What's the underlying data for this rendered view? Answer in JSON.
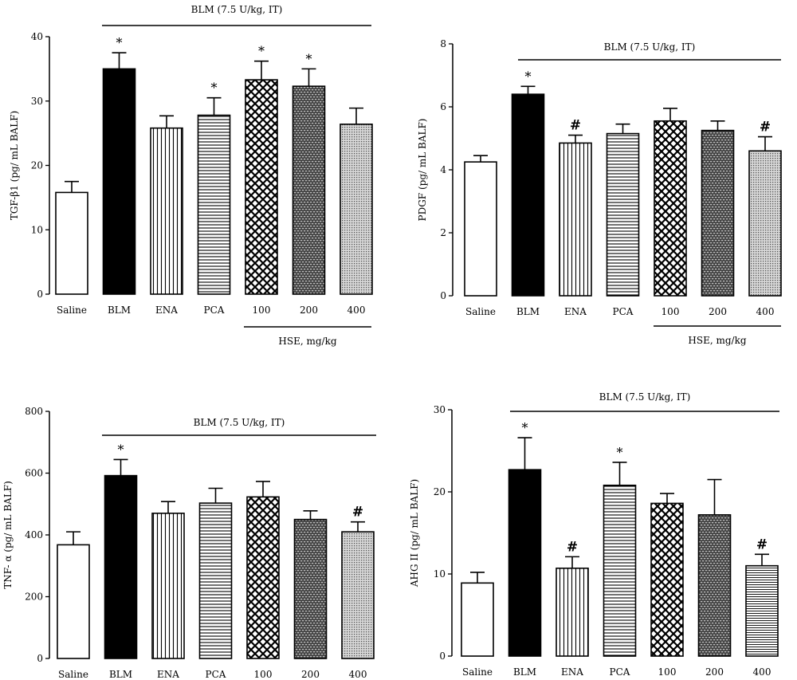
{
  "chart_data": [
    {
      "type": "bar",
      "ylabel": "TGF-β1 (pg/ mL BALF)",
      "ylim": [
        0,
        40
      ],
      "yticks": [
        0,
        10,
        20,
        30,
        40
      ],
      "categories": [
        "Saline",
        "BLM",
        "ENA",
        "PCA",
        "100",
        "200",
        "400"
      ],
      "values": [
        15.8,
        35.0,
        25.8,
        27.8,
        33.3,
        32.3,
        26.4
      ],
      "errors": [
        1.7,
        2.5,
        1.9,
        2.7,
        2.9,
        2.7,
        2.5
      ],
      "markers": [
        "",
        "*",
        "",
        "*",
        "*",
        "*",
        ""
      ],
      "top_annotation": "BLM (7.5 U/kg, IT)",
      "bottom_annotation": "HSE, mg/kg",
      "fills": [
        "white",
        "black",
        "vertical",
        "horizontal",
        "crosshatch",
        "brick",
        "dots"
      ]
    },
    {
      "type": "bar",
      "ylabel": "PDGF (pg/ mL BALF)",
      "ylim": [
        0,
        8
      ],
      "yticks": [
        0,
        2,
        4,
        6,
        8
      ],
      "categories": [
        "Saline",
        "BLM",
        "ENA",
        "PCA",
        "100",
        "200",
        "400"
      ],
      "values": [
        4.25,
        6.4,
        4.85,
        5.15,
        5.55,
        5.25,
        4.6
      ],
      "errors": [
        0.2,
        0.25,
        0.25,
        0.3,
        0.4,
        0.3,
        0.45
      ],
      "markers": [
        "",
        "*",
        "#",
        "",
        "",
        "",
        "#"
      ],
      "top_annotation": "BLM (7.5 U/kg, IT)",
      "bottom_annotation": "HSE, mg/kg",
      "fills": [
        "white",
        "black",
        "vertical",
        "horizontal",
        "crosshatch",
        "brick",
        "dots"
      ]
    },
    {
      "type": "bar",
      "ylabel": "TNF- α (pg/ mL BALF)",
      "ylim": [
        0,
        800
      ],
      "yticks": [
        0,
        200,
        400,
        600,
        800
      ],
      "categories": [
        "Saline",
        "BLM",
        "ENA",
        "PCA",
        "100",
        "200",
        "400"
      ],
      "values": [
        368,
        592,
        470,
        503,
        523,
        450,
        410
      ],
      "errors": [
        42,
        52,
        38,
        48,
        50,
        28,
        32
      ],
      "markers": [
        "",
        "*",
        "",
        "",
        "",
        "",
        "#"
      ],
      "top_annotation": "BLM (7.5 U/kg, IT)",
      "bottom_annotation": "",
      "fills": [
        "white",
        "black",
        "vertical",
        "horizontal",
        "crosshatch",
        "brick",
        "dots"
      ]
    },
    {
      "type": "bar",
      "ylabel": "AHG II (pg/ mL BALF)",
      "ylim": [
        0,
        30
      ],
      "yticks": [
        0,
        10,
        20,
        30
      ],
      "categories": [
        "Saline",
        "BLM",
        "ENA",
        "PCA",
        "100",
        "200",
        "400"
      ],
      "values": [
        8.9,
        22.7,
        10.7,
        20.8,
        18.6,
        17.2,
        11.0
      ],
      "errors": [
        1.3,
        3.9,
        1.4,
        2.8,
        1.2,
        4.3,
        1.4
      ],
      "markers": [
        "",
        "*",
        "#",
        "*",
        "",
        "",
        "#"
      ],
      "top_annotation": "BLM (7.5 U/kg, IT)",
      "bottom_annotation": "",
      "fills": [
        "white",
        "black",
        "vertical",
        "horizontal",
        "crosshatch",
        "brick",
        "horizontal-fine"
      ]
    }
  ]
}
